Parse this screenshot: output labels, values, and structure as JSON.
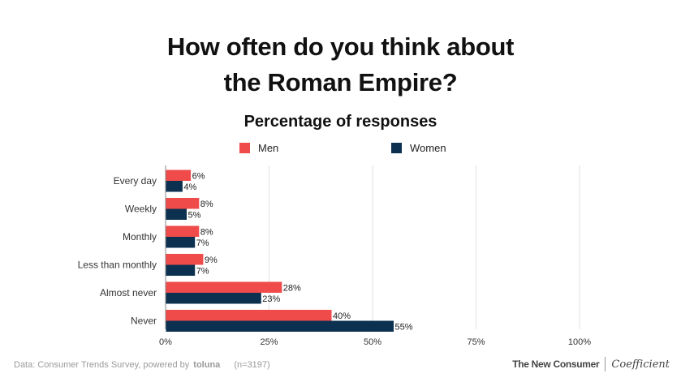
{
  "title_line1": "How often do you think about",
  "title_line2": "the Roman Empire?",
  "chart_data": {
    "type": "bar",
    "orientation": "horizontal",
    "title": "How often do you think about the Roman Empire?",
    "subtitle": "Percentage of responses",
    "categories": [
      "Every day",
      "Weekly",
      "Monthly",
      "Less than monthly",
      "Almost never",
      "Never"
    ],
    "series": [
      {
        "name": "Men",
        "color": "#f04b4b",
        "values": [
          6,
          8,
          8,
          9,
          28,
          40
        ]
      },
      {
        "name": "Women",
        "color": "#0c3150",
        "values": [
          4,
          5,
          7,
          7,
          23,
          55
        ]
      }
    ],
    "value_suffix": "%",
    "xlim": [
      0,
      100
    ],
    "x_ticks": [
      "0%",
      "25%",
      "50%",
      "75%",
      "100%"
    ],
    "grid": true,
    "legend_position": "top"
  },
  "footer": {
    "source_prefix": "Data: Consumer Trends Survey, powered by",
    "source_brand": "toluna",
    "sample": "(n=3197)",
    "logo_primary": "The New Consumer",
    "logo_secondary": "Coefficient"
  }
}
